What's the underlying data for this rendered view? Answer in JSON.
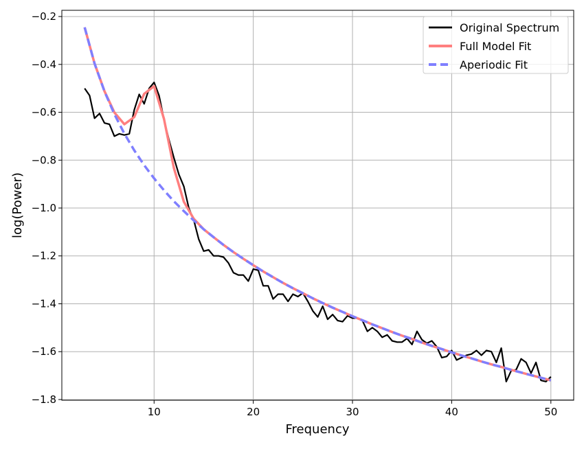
{
  "chart_data": {
    "type": "line",
    "title": "",
    "xlabel": "Frequency",
    "ylabel": "log(Power)",
    "xlim": [
      0.7,
      52.3
    ],
    "ylim": [
      -1.803,
      -0.174
    ],
    "xticks": [
      10,
      20,
      30,
      40,
      50
    ],
    "yticks": [
      -0.2,
      -0.4,
      -0.6,
      -0.8,
      -1.0,
      -1.2,
      -1.4,
      -1.6,
      -1.8
    ],
    "xtick_labels": [
      "10",
      "20",
      "30",
      "40",
      "50"
    ],
    "ytick_labels": [
      "−0.2",
      "−0.4",
      "−0.6",
      "−0.8",
      "−1.0",
      "−1.2",
      "−1.4",
      "−1.6",
      "−1.8"
    ],
    "grid": true,
    "legend_placement": "top-right",
    "series": [
      {
        "name": "Original Spectrum",
        "color": "#000000",
        "style": "solid",
        "x": [
          3,
          3.5,
          4,
          4.5,
          5,
          5.5,
          6,
          6.5,
          7,
          7.5,
          8,
          8.5,
          9,
          9.5,
          10,
          10.5,
          11,
          11.5,
          12,
          12.5,
          13,
          13.5,
          14,
          14.5,
          15,
          15.5,
          16,
          16.5,
          17,
          17.5,
          18,
          18.5,
          19,
          19.5,
          20,
          20.5,
          21,
          21.5,
          22,
          22.5,
          23,
          23.5,
          24,
          24.5,
          25,
          25.5,
          26,
          26.5,
          27,
          27.5,
          28,
          28.5,
          29,
          29.5,
          30,
          30.5,
          31,
          31.5,
          32,
          32.5,
          33,
          33.5,
          34,
          34.5,
          35,
          35.5,
          36,
          36.5,
          37,
          37.5,
          38,
          38.5,
          39,
          39.5,
          40,
          40.5,
          41,
          41.5,
          42,
          42.5,
          43,
          43.5,
          44,
          44.5,
          45,
          45.5,
          46,
          46.5,
          47,
          47.5,
          48,
          48.5,
          49,
          49.5,
          50
        ],
        "y": [
          -0.5,
          -0.53,
          -0.625,
          -0.605,
          -0.645,
          -0.65,
          -0.7,
          -0.69,
          -0.695,
          -0.69,
          -0.59,
          -0.525,
          -0.565,
          -0.5,
          -0.475,
          -0.53,
          -0.63,
          -0.715,
          -0.79,
          -0.86,
          -0.91,
          -1.0,
          -1.05,
          -1.13,
          -1.18,
          -1.175,
          -1.2,
          -1.2,
          -1.205,
          -1.23,
          -1.27,
          -1.28,
          -1.28,
          -1.305,
          -1.255,
          -1.26,
          -1.325,
          -1.325,
          -1.38,
          -1.36,
          -1.36,
          -1.39,
          -1.36,
          -1.37,
          -1.355,
          -1.39,
          -1.43,
          -1.455,
          -1.41,
          -1.465,
          -1.445,
          -1.47,
          -1.475,
          -1.45,
          -1.46,
          -1.46,
          -1.47,
          -1.515,
          -1.5,
          -1.515,
          -1.54,
          -1.53,
          -1.555,
          -1.56,
          -1.56,
          -1.545,
          -1.57,
          -1.515,
          -1.55,
          -1.565,
          -1.555,
          -1.58,
          -1.625,
          -1.62,
          -1.595,
          -1.635,
          -1.625,
          -1.615,
          -1.61,
          -1.595,
          -1.615,
          -1.595,
          -1.6,
          -1.645,
          -1.585,
          -1.725,
          -1.68,
          -1.675,
          -1.63,
          -1.645,
          -1.69,
          -1.645,
          -1.72,
          -1.725,
          -1.705
        ]
      },
      {
        "name": "Full Model Fit",
        "color": "#ff7f7f",
        "style": "solid",
        "x": [
          3,
          4,
          5,
          6,
          7,
          8,
          9,
          10,
          11,
          12,
          13,
          14,
          15,
          16,
          17,
          18,
          19,
          20,
          21,
          22,
          23,
          24,
          25,
          26,
          27,
          28,
          29,
          30,
          31,
          32,
          33,
          34,
          35,
          36,
          37,
          38,
          39,
          40,
          41,
          42,
          43,
          44,
          45,
          46,
          47,
          48,
          49,
          50
        ],
        "y": [
          -0.245,
          -0.396,
          -0.512,
          -0.601,
          -0.65,
          -0.62,
          -0.523,
          -0.491,
          -0.628,
          -0.833,
          -0.974,
          -1.045,
          -1.089,
          -1.122,
          -1.154,
          -1.184,
          -1.212,
          -1.239,
          -1.265,
          -1.289,
          -1.313,
          -1.335,
          -1.356,
          -1.377,
          -1.397,
          -1.416,
          -1.434,
          -1.452,
          -1.469,
          -1.486,
          -1.502,
          -1.518,
          -1.533,
          -1.547,
          -1.562,
          -1.576,
          -1.589,
          -1.603,
          -1.616,
          -1.628,
          -1.641,
          -1.653,
          -1.664,
          -1.676,
          -1.687,
          -1.698,
          -1.709,
          -1.72
        ]
      },
      {
        "name": "Aperiodic Fit",
        "color": "#7f7fff",
        "style": "dashed",
        "x": [
          3,
          4,
          5,
          6,
          7,
          8,
          9,
          10,
          11,
          12,
          13,
          14,
          15,
          16,
          17,
          18,
          19,
          20,
          21,
          22,
          23,
          24,
          25,
          26,
          27,
          28,
          29,
          30,
          31,
          32,
          33,
          34,
          35,
          36,
          37,
          38,
          39,
          40,
          41,
          42,
          43,
          44,
          45,
          46,
          47,
          48,
          49,
          50
        ],
        "y": [
          -0.245,
          -0.396,
          -0.513,
          -0.608,
          -0.689,
          -0.759,
          -0.821,
          -0.876,
          -0.926,
          -0.972,
          -1.013,
          -1.052,
          -1.089,
          -1.122,
          -1.154,
          -1.184,
          -1.212,
          -1.239,
          -1.265,
          -1.289,
          -1.313,
          -1.335,
          -1.356,
          -1.377,
          -1.397,
          -1.416,
          -1.434,
          -1.452,
          -1.469,
          -1.486,
          -1.502,
          -1.518,
          -1.533,
          -1.547,
          -1.562,
          -1.576,
          -1.589,
          -1.603,
          -1.616,
          -1.628,
          -1.641,
          -1.653,
          -1.664,
          -1.676,
          -1.687,
          -1.698,
          -1.709,
          -1.72
        ]
      }
    ]
  }
}
